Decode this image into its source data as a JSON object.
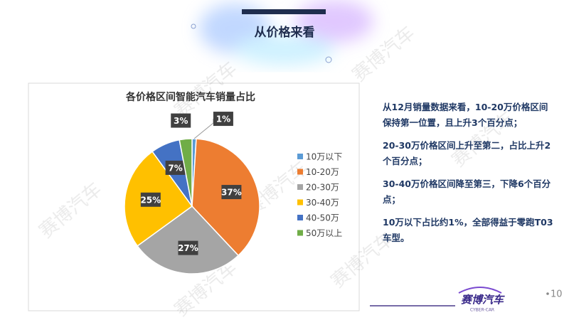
{
  "header": {
    "title": "从价格来看"
  },
  "chart_data": {
    "type": "pie",
    "title": "各价格区间智能汽车销量占比",
    "categories": [
      "10万以下",
      "10-20万",
      "20-30万",
      "30-40万",
      "40-50万",
      "50万以上"
    ],
    "values": [
      1,
      37,
      27,
      25,
      7,
      3
    ],
    "value_labels": [
      "1%",
      "37%",
      "27%",
      "25%",
      "7%",
      "3%"
    ],
    "colors": [
      "#5b9bd5",
      "#ed7d31",
      "#a5a5a5",
      "#ffc000",
      "#4472c4",
      "#70ad47"
    ],
    "legend": "right"
  },
  "notes": [
    "从12月销量数据来看，10-20万价格区间保持第一位置，且上升3个百分点；",
    "20-30万价格区间上升至第二，占比上升2个百分点；",
    "30-40万价格区间降至第三，下降6个百分点；",
    "10万以下占比约1%，全部得益于零跑T03车型。"
  ],
  "watermark": "赛博汽车",
  "logo": {
    "name": "赛博汽车",
    "sub": "CYBER-CAR"
  },
  "page_number": "10"
}
